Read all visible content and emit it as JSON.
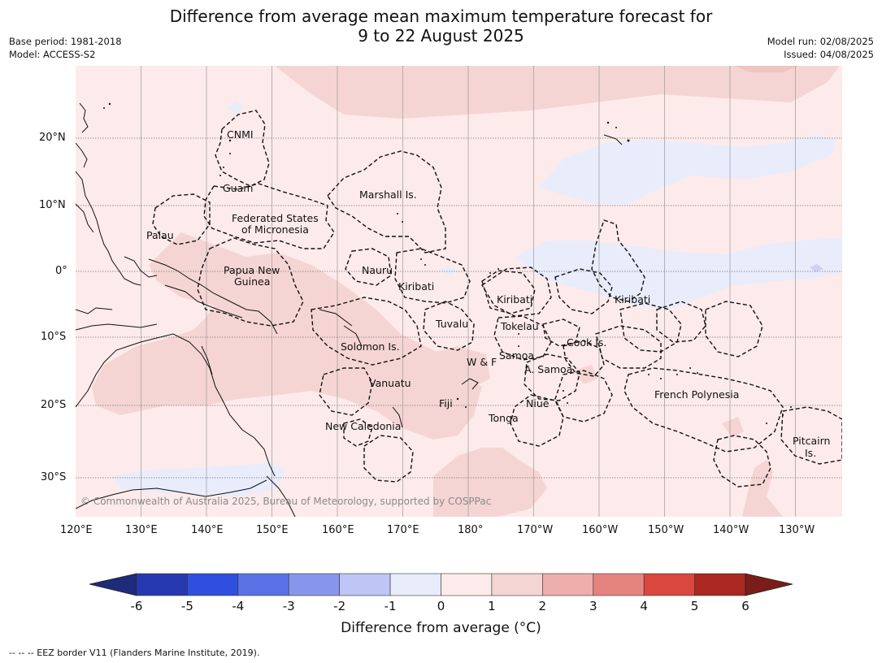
{
  "header": {
    "title_line1": "Difference from average mean maximum temperature forecast for",
    "title_line2": "9 to 22 August 2025",
    "base_period": "Base period: 1981-2018",
    "model": "Model: ACCESS-S2",
    "model_run": "Model run: 02/08/2025",
    "issued": "Issued: 04/08/2025"
  },
  "map": {
    "lon_ticks": [
      "120°E",
      "130°E",
      "140°E",
      "150°E",
      "160°E",
      "170°E",
      "180°",
      "170°W",
      "160°W",
      "150°W",
      "140°W",
      "130°W"
    ],
    "lat_ticks": [
      "20°N",
      "10°N",
      "0°",
      "10°S",
      "20°S",
      "30°S"
    ],
    "regions": [
      "CNMI",
      "Guam",
      "Marshall Is.",
      "Federated States",
      "of Micronesia",
      "Palau",
      "Papua New",
      "Guinea",
      "Nauru",
      "Kiribati",
      "Kiribati",
      "Kiribati",
      "Tuvalu",
      "Tokelau",
      "Cook Is.",
      "Solomon Is.",
      "Samoa",
      "W & F",
      "A. Samoa",
      "Vanuatu",
      "Fiji",
      "Niue",
      "Tonga",
      "New Caledonia",
      "French Polynesia",
      "Pitcairn",
      "Is."
    ],
    "copyright": "© Commonwealth of Australia 2025, Bureau of Meteorology, supported by COSPPac",
    "colors": {
      "base": "#fcebea",
      "warm": "#f5d5d3",
      "warmer": "#f0c4c1",
      "cool": "#e9ecfb",
      "coolish": "#cdd3f2"
    }
  },
  "legend": {
    "title": "Difference from average (°C)",
    "ticks": [
      "-6",
      "-5",
      "-4",
      "-3",
      "-2",
      "-1",
      "0",
      "1",
      "2",
      "3",
      "4",
      "5",
      "6"
    ],
    "bins": [
      "#2639b0",
      "#2f4fde",
      "#5a72e6",
      "#8895ec",
      "#bdc6f5",
      "#e9ecfb",
      "#fcebea",
      "#f5d5d3",
      "#eeaeab",
      "#e5837f",
      "#d9473f",
      "#ab2721"
    ],
    "under_color": "#1e2a7a",
    "over_color": "#7a1d18"
  },
  "footer": {
    "note": "--  --  -- EEZ border V11 (Flanders Marine Institute, 2019)."
  }
}
